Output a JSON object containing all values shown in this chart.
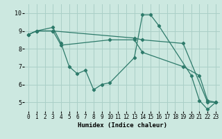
{
  "background_color": "#cce8e0",
  "line_color": "#2d7a6a",
  "grid_color": "#aacfc7",
  "xlabel": "Humidex (Indice chaleur)",
  "xlim": [
    -0.5,
    23.5
  ],
  "ylim": [
    4.5,
    10.5
  ],
  "yticks": [
    5,
    6,
    7,
    8,
    9,
    10
  ],
  "xticks": [
    0,
    1,
    2,
    3,
    4,
    5,
    6,
    7,
    8,
    9,
    10,
    11,
    12,
    13,
    14,
    15,
    16,
    17,
    18,
    19,
    20,
    21,
    22,
    23
  ],
  "lines": [
    {
      "x": [
        0,
        1,
        3,
        4,
        5,
        6,
        7,
        8,
        9,
        10,
        13,
        14,
        15,
        16,
        20,
        21,
        22,
        23
      ],
      "y": [
        8.8,
        9.0,
        9.2,
        8.3,
        7.0,
        6.6,
        6.8,
        5.7,
        6.0,
        6.1,
        7.5,
        9.9,
        9.9,
        9.3,
        6.5,
        5.1,
        4.6,
        5.0
      ]
    },
    {
      "x": [
        0,
        1,
        3,
        4,
        10,
        13,
        14,
        19,
        21,
        22,
        23
      ],
      "y": [
        8.8,
        9.0,
        9.0,
        8.2,
        8.5,
        8.5,
        7.8,
        7.0,
        6.5,
        5.1,
        5.0
      ]
    },
    {
      "x": [
        0,
        1,
        3,
        13,
        14,
        19,
        22,
        23
      ],
      "y": [
        8.8,
        9.0,
        9.0,
        8.6,
        8.5,
        8.3,
        5.0,
        5.0
      ]
    }
  ]
}
